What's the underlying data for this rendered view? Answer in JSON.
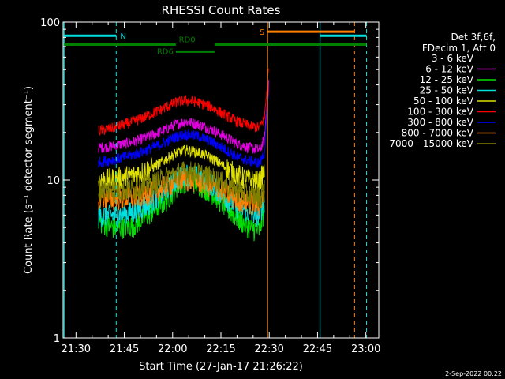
{
  "chart_data": {
    "type": "line",
    "title": "RHESSI Count Rates",
    "xlabel": "Start Time (27-Jan-17 21:26:22)",
    "ylabel": "Count Rate (s⁻¹ detector segment⁻¹)",
    "x_unit": "minutes",
    "xlim": [
      86,
      184
    ],
    "ylim": [
      1,
      100
    ],
    "y_scale": "log",
    "x_ticks": [
      {
        "value": 90,
        "label": "21:30"
      },
      {
        "value": 105,
        "label": "21:45"
      },
      {
        "value": 120,
        "label": "22:00"
      },
      {
        "value": 135,
        "label": "22:15"
      },
      {
        "value": 150,
        "label": "22:30"
      },
      {
        "value": 165,
        "label": "22:45"
      },
      {
        "value": 180,
        "label": "23:00"
      }
    ],
    "y_ticks": [
      {
        "value": 1,
        "label": "1"
      },
      {
        "value": 10,
        "label": "10"
      },
      {
        "value": 100,
        "label": "100"
      }
    ],
    "legend_position": "right",
    "legend_header": [
      "Det 3f,6f,",
      "FDecim 1, Att 0"
    ],
    "series": [
      {
        "name": "3 - 6 keV",
        "color": "#000000",
        "x": [
          97,
          102,
          108,
          113,
          118,
          121,
          124,
          128,
          132,
          136,
          140,
          144,
          147,
          148.5,
          149.2,
          149.8
        ],
        "y": [
          20,
          21,
          23,
          25,
          28,
          30,
          31,
          30,
          28,
          25,
          23,
          22,
          21,
          24,
          35,
          48
        ]
      },
      {
        "name": "6 - 12 keV",
        "color": "#e000e0",
        "x": [
          97,
          102,
          108,
          113,
          118,
          121,
          124,
          128,
          132,
          136,
          140,
          144,
          147,
          148.5,
          149.2,
          149.8
        ],
        "y": [
          16,
          16.5,
          17.5,
          19,
          21,
          22.5,
          23.5,
          22.5,
          21,
          19,
          17,
          16,
          15.5,
          18,
          28,
          40
        ]
      },
      {
        "name": "12 - 25 keV",
        "color": "#00e000",
        "x": [
          97,
          102,
          108,
          113,
          118,
          121,
          124,
          128,
          132,
          136,
          140,
          144,
          147,
          148.5
        ],
        "y": [
          5.5,
          5,
          5.2,
          6.2,
          7.5,
          9,
          10,
          9.5,
          8.5,
          7,
          5.8,
          5,
          4.8,
          6.5
        ]
      },
      {
        "name": "25 - 50 keV",
        "color": "#00e0e0",
        "x": [
          97,
          102,
          108,
          113,
          118,
          121,
          124,
          128,
          132,
          136,
          140,
          144,
          147,
          148.5
        ],
        "y": [
          6,
          6,
          6.3,
          7.2,
          8.6,
          10,
          11,
          10.5,
          9.5,
          8,
          6.8,
          6.2,
          6,
          7.5
        ]
      },
      {
        "name": "50 - 100 keV",
        "color": "#e0e000",
        "x": [
          97,
          102,
          108,
          113,
          118,
          121,
          124,
          128,
          132,
          136,
          140,
          144,
          147,
          148.5
        ],
        "y": [
          10,
          10.2,
          10.8,
          11.8,
          13.5,
          14.8,
          15.5,
          15,
          13.8,
          12.2,
          10.8,
          10,
          9.8,
          11.5
        ]
      },
      {
        "name": "100 - 300 keV",
        "color": "#ff0000",
        "x": [
          97,
          102,
          108,
          113,
          118,
          121,
          124,
          128,
          132,
          136,
          140,
          144,
          147,
          148.5,
          149.2,
          149.8
        ],
        "y": [
          20.5,
          21.5,
          23.5,
          26,
          29,
          31,
          32,
          31,
          29,
          26,
          23.5,
          22,
          21.5,
          25,
          36,
          50
        ]
      },
      {
        "name": "300 - 800 keV",
        "color": "#0000ff",
        "x": [
          97,
          102,
          108,
          113,
          118,
          121,
          124,
          128,
          132,
          136,
          140,
          144,
          147,
          148.5,
          149.2,
          149.8
        ],
        "y": [
          13,
          13.5,
          14.5,
          15.8,
          17.5,
          18.8,
          19.5,
          19,
          17.5,
          15.8,
          14,
          13.2,
          12.8,
          15,
          24,
          34
        ]
      },
      {
        "name": "800 - 7000 keV",
        "color": "#ff8000",
        "x": [
          97,
          102,
          108,
          113,
          118,
          121,
          124,
          128,
          132,
          136,
          140,
          144,
          147,
          148.5
        ],
        "y": [
          7.8,
          7.6,
          7.8,
          8.3,
          9.2,
          9.8,
          10.2,
          9.9,
          9.2,
          8.4,
          7.6,
          7.2,
          7,
          7.6
        ]
      },
      {
        "name": "7000 - 15000 keV",
        "color": "#808000",
        "x": [
          97,
          102,
          108,
          113,
          118,
          121,
          124,
          128,
          132,
          136,
          140,
          144,
          147,
          148.5
        ],
        "y": [
          8.8,
          8.6,
          8.8,
          9.4,
          10.4,
          11,
          11.4,
          11.1,
          10.4,
          9.5,
          8.6,
          8.1,
          7.9,
          8.6
        ]
      }
    ],
    "vlines": [
      {
        "x": 86.3,
        "color": "#00e0e0",
        "style": "solid"
      },
      {
        "x": 102.5,
        "color": "#00e0e0",
        "style": "dashed"
      },
      {
        "x": 149.5,
        "color": "#ff8000",
        "style": "solid"
      },
      {
        "x": 165.8,
        "color": "#00e0e0",
        "style": "solid"
      },
      {
        "x": 176.5,
        "color": "#ff8000",
        "style": "dashed"
      },
      {
        "x": 180.2,
        "color": "#00e0e0",
        "style": "dashed"
      }
    ],
    "state_bars": [
      {
        "label": "N",
        "color": "#00e0e0",
        "y": 82,
        "segments": [
          [
            86.3,
            102.5
          ],
          [
            165.8,
            180.2
          ]
        ]
      },
      {
        "label": "S",
        "color": "#ff8000",
        "y": 87,
        "segments": [
          [
            149.5,
            176.5
          ]
        ]
      },
      {
        "label": "RD0",
        "color": "#008000",
        "y": 72,
        "segments": [
          [
            86.3,
            121
          ],
          [
            133,
            180.2
          ]
        ]
      },
      {
        "label": "RD6",
        "color": "#008000",
        "y": 65,
        "segments": [
          [
            121,
            133
          ]
        ]
      }
    ]
  },
  "footer": {
    "date_stamp": "2-Sep-2022 00:22"
  }
}
